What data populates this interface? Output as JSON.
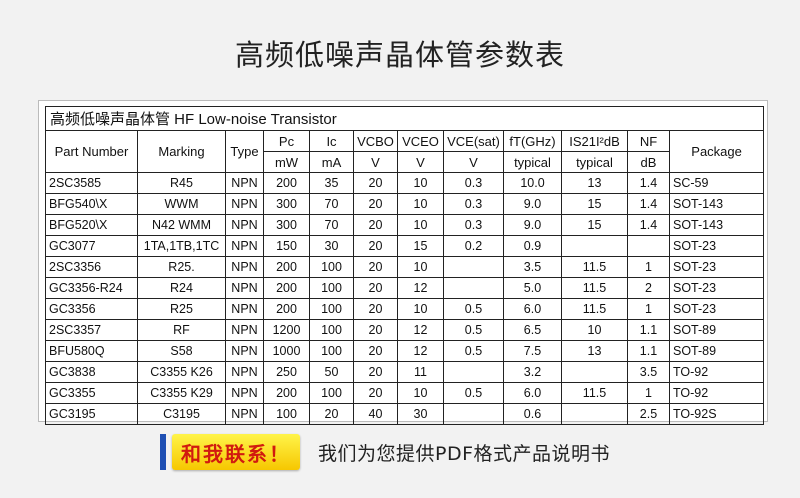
{
  "page_title": "高频低噪声晶体管参数表",
  "table": {
    "caption": "高频低噪声晶体管 HF Low-noise Transistor",
    "headers": {
      "part_number": "Part Number",
      "marking": "Marking",
      "type": "Type",
      "pc": "Pc",
      "pc_unit": "mW",
      "ic": "Ic",
      "ic_unit": "mA",
      "vcbo": "VCBO",
      "vcbo_unit": "V",
      "vceo": "VCEO",
      "vceo_unit": "V",
      "vcesat": "VCE(sat)",
      "vcesat_unit": "V",
      "ft": "fT(GHz)",
      "ft_unit": "typical",
      "s21": "IS21I²dB",
      "s21_unit": "typical",
      "nf": "NF",
      "nf_unit": "dB",
      "package": "Package"
    },
    "rows": [
      [
        "2SC3585",
        "R45",
        "NPN",
        "200",
        "35",
        "20",
        "10",
        "0.3",
        "10.0",
        "13",
        "1.4",
        "SC-59"
      ],
      [
        "BFG540\\X",
        "WWM",
        "NPN",
        "300",
        "70",
        "20",
        "10",
        "0.3",
        "9.0",
        "15",
        "1.4",
        "SOT-143"
      ],
      [
        "BFG520\\X",
        "N42  WMM",
        "NPN",
        "300",
        "70",
        "20",
        "10",
        "0.3",
        "9.0",
        "15",
        "1.4",
        "SOT-143"
      ],
      [
        "GC3077",
        "1TA,1TB,1TC",
        "NPN",
        "150",
        "30",
        "20",
        "15",
        "0.2",
        "0.9",
        "",
        "",
        "SOT-23"
      ],
      [
        "2SC3356",
        "R25.",
        "NPN",
        "200",
        "100",
        "20",
        "10",
        "",
        "3.5",
        "11.5",
        "1",
        "SOT-23"
      ],
      [
        "GC3356-R24",
        "R24",
        "NPN",
        "200",
        "100",
        "20",
        "12",
        "",
        "5.0",
        "11.5",
        "2",
        "SOT-23"
      ],
      [
        "GC3356",
        "R25",
        "NPN",
        "200",
        "100",
        "20",
        "10",
        "0.5",
        "6.0",
        "11.5",
        "1",
        "SOT-23"
      ],
      [
        "2SC3357",
        "RF",
        "NPN",
        "1200",
        "100",
        "20",
        "12",
        "0.5",
        "6.5",
        "10",
        "1.1",
        "SOT-89"
      ],
      [
        "BFU580Q",
        "S58",
        "NPN",
        "1000",
        "100",
        "20",
        "12",
        "0.5",
        "7.5",
        "13",
        "1.1",
        "SOT-89"
      ],
      [
        "GC3838",
        "C3355 K26",
        "NPN",
        "250",
        "50",
        "20",
        "11",
        "",
        "3.2",
        "",
        "3.5",
        "TO-92"
      ],
      [
        "GC3355",
        "C3355 K29",
        "NPN",
        "200",
        "100",
        "20",
        "10",
        "0.5",
        "6.0",
        "11.5",
        "1",
        "TO-92"
      ],
      [
        "GC3195",
        "C3195",
        "NPN",
        "100",
        "20",
        "40",
        "30",
        "",
        "0.6",
        "",
        "2.5",
        "TO-92S"
      ]
    ]
  },
  "contact": {
    "button_label": "和我联系！",
    "text": "我们为您提供PDF格式产品说明书"
  },
  "colors": {
    "accent": "#1e4fb3",
    "button_bg": "#f6c700",
    "button_text": "#d11a0f"
  }
}
